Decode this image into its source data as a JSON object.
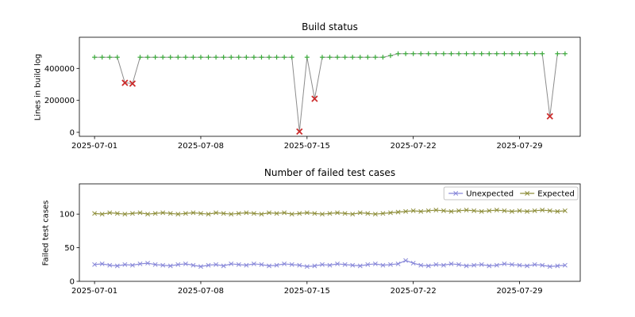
{
  "figure": {
    "background": "#ffffff"
  },
  "chart_data": [
    {
      "type": "line",
      "title": "Build status",
      "ylabel": "Lines in build log",
      "xlabel": "",
      "x_unit": "days since 2025-07-01",
      "xlim": [
        -1.0,
        32.0
      ],
      "ylim": [
        -25000,
        595000
      ],
      "x_ticks": {
        "positions": [
          0,
          7,
          14,
          21,
          28
        ],
        "labels": [
          "2025-07-01",
          "2025-07-08",
          "2025-07-15",
          "2025-07-22",
          "2025-07-29"
        ]
      },
      "y_ticks": {
        "positions": [
          0,
          200000,
          400000
        ],
        "labels": [
          "0",
          "200000",
          "400000"
        ]
      },
      "line_color": "#8c8c8c",
      "markers": {
        "success": {
          "shape": "plus",
          "color": "#3bab3b"
        },
        "failure": {
          "shape": "x",
          "color": "#cc2d2d"
        }
      },
      "x": [
        0,
        0.5,
        1,
        1.5,
        2,
        2.5,
        3,
        3.5,
        4,
        4.5,
        5,
        5.5,
        6,
        6.5,
        7,
        7.5,
        8,
        8.5,
        9,
        9.5,
        10,
        10.5,
        11,
        11.5,
        12,
        12.5,
        13,
        13.5,
        14,
        14.5,
        15,
        15.5,
        16,
        16.5,
        17,
        17.5,
        18,
        18.5,
        19,
        19.5,
        20,
        20.5,
        21,
        21.5,
        22,
        22.5,
        23,
        23.5,
        24,
        24.5,
        25,
        25.5,
        26,
        26.5,
        27,
        27.5,
        28,
        28.5,
        29,
        29.5,
        30,
        30.5,
        31
      ],
      "y": [
        470000,
        470000,
        470000,
        470000,
        310000,
        305000,
        470000,
        470000,
        470000,
        470000,
        470000,
        470000,
        470000,
        470000,
        470000,
        470000,
        470000,
        470000,
        470000,
        470000,
        470000,
        470000,
        470000,
        470000,
        470000,
        470000,
        470000,
        5000,
        470000,
        210000,
        470000,
        470000,
        470000,
        470000,
        470000,
        470000,
        470000,
        470000,
        470000,
        480000,
        492000,
        492000,
        492000,
        492000,
        492000,
        492000,
        492000,
        492000,
        492000,
        492000,
        492000,
        492000,
        492000,
        492000,
        492000,
        492000,
        492000,
        492000,
        492000,
        492000,
        100000,
        492000,
        492000
      ],
      "failed_indices": [
        4,
        5,
        27,
        29,
        60
      ]
    },
    {
      "type": "line",
      "title": "Number of failed test cases",
      "ylabel": "Failed test cases",
      "xlabel": "",
      "x_unit": "days since 2025-07-01",
      "xlim": [
        -1.0,
        32.0
      ],
      "ylim": [
        0,
        145
      ],
      "x_ticks": {
        "positions": [
          0,
          7,
          14,
          21,
          28
        ],
        "labels": [
          "2025-07-01",
          "2025-07-08",
          "2025-07-15",
          "2025-07-22",
          "2025-07-29"
        ]
      },
      "y_ticks": {
        "positions": [
          0,
          50,
          100
        ],
        "labels": [
          "0",
          "50",
          "100"
        ]
      },
      "x": [
        0,
        0.5,
        1,
        1.5,
        2,
        2.5,
        3,
        3.5,
        4,
        4.5,
        5,
        5.5,
        6,
        6.5,
        7,
        7.5,
        8,
        8.5,
        9,
        9.5,
        10,
        10.5,
        11,
        11.5,
        12,
        12.5,
        13,
        13.5,
        14,
        14.5,
        15,
        15.5,
        16,
        16.5,
        17,
        17.5,
        18,
        18.5,
        19,
        19.5,
        20,
        20.5,
        21,
        21.5,
        22,
        22.5,
        23,
        23.5,
        24,
        24.5,
        25,
        25.5,
        26,
        26.5,
        27,
        27.5,
        28,
        28.5,
        29,
        29.5,
        30,
        30.5,
        31
      ],
      "series": [
        {
          "name": "Unexpected",
          "color": "#8888d9",
          "marker": "x",
          "y": [
            25,
            26,
            24,
            23,
            25,
            24,
            26,
            27,
            25,
            24,
            23,
            25,
            26,
            24,
            22,
            24,
            25,
            23,
            26,
            25,
            24,
            26,
            25,
            23,
            24,
            26,
            25,
            24,
            22,
            23,
            25,
            24,
            26,
            25,
            24,
            23,
            25,
            26,
            24,
            25,
            26,
            31,
            27,
            24,
            23,
            25,
            24,
            26,
            25,
            23,
            24,
            25,
            23,
            24,
            26,
            25,
            24,
            23,
            25,
            24,
            22,
            23,
            24
          ]
        },
        {
          "name": "Expected",
          "color": "#8e8e3a",
          "marker": "x",
          "y": [
            101,
            100,
            102,
            101,
            100,
            101,
            102,
            100,
            101,
            102,
            101,
            100,
            101,
            102,
            101,
            100,
            102,
            101,
            100,
            101,
            102,
            101,
            100,
            102,
            101,
            102,
            100,
            101,
            102,
            101,
            100,
            101,
            102,
            101,
            100,
            102,
            101,
            100,
            101,
            102,
            103,
            104,
            105,
            104,
            105,
            106,
            105,
            104,
            105,
            106,
            105,
            104,
            105,
            106,
            105,
            104,
            105,
            104,
            105,
            106,
            105,
            104,
            105
          ]
        }
      ],
      "legend": {
        "position": "upper right",
        "entries": [
          "Unexpected",
          "Expected"
        ]
      }
    }
  ]
}
